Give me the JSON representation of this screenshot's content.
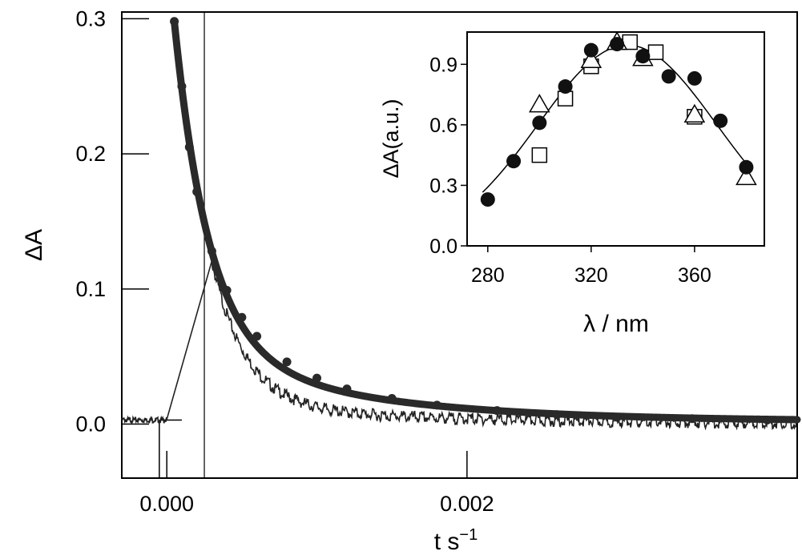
{
  "chart_data": [
    {
      "type": "line",
      "xlabel": "t s",
      "xlabel_sup": "−1",
      "ylabel": "ΔA",
      "xlim": [
        -0.0003,
        0.0042
      ],
      "ylim": [
        -0.04,
        0.305
      ],
      "x_ticks": [
        0.0,
        0.002
      ],
      "x_tick_labels": [
        "0.000",
        "0.002"
      ],
      "y_ticks": [
        0.0,
        0.1,
        0.2,
        0.3
      ],
      "y_tick_labels": [
        "0.0",
        "0.1",
        "0.2",
        "0.3"
      ],
      "grid": false,
      "series": [
        {
          "style": "thick-markers",
          "x": [
            5e-05,
            0.0001,
            0.00015,
            0.0002,
            0.0003,
            0.0004,
            0.0005,
            0.0006,
            0.0008,
            0.001,
            0.0012,
            0.0015,
            0.0018,
            0.0022,
            0.0026,
            0.003,
            0.0035,
            0.004
          ],
          "values": [
            0.298,
            0.25,
            0.205,
            0.172,
            0.128,
            0.099,
            0.079,
            0.065,
            0.046,
            0.034,
            0.026,
            0.019,
            0.014,
            0.01,
            0.007,
            0.005,
            0.004,
            0.003
          ]
        },
        {
          "style": "thin-noisy",
          "x": [
            -0.0003,
            -0.00015,
            0.0,
            0.00028,
            0.00032,
            0.0004,
            0.0005,
            0.0006,
            0.0008,
            0.001,
            0.0012,
            0.0015,
            0.0018,
            0.0022,
            0.0026,
            0.003,
            0.0035,
            0.004
          ],
          "values": [
            0.003,
            0.003,
            0.003,
            0.11,
            0.105,
            0.085,
            0.066,
            0.052,
            0.036,
            0.026,
            0.02,
            0.014,
            0.011,
            0.007,
            0.006,
            0.005,
            0.004,
            0.003
          ]
        }
      ]
    },
    {
      "type": "scatter",
      "xlabel": "λ / nm",
      "ylabel": "ΔA(a.u.)",
      "xlim": [
        272,
        387
      ],
      "ylim": [
        0.0,
        1.06
      ],
      "x_ticks": [
        280,
        320,
        360
      ],
      "x_tick_labels": [
        "280",
        "320",
        "360"
      ],
      "y_ticks": [
        0.0,
        0.3,
        0.6,
        0.9
      ],
      "y_tick_labels": [
        "0.0",
        "0.3",
        "0.6",
        "0.9"
      ],
      "grid": false,
      "series": [
        {
          "marker": "filled-circle",
          "x": [
            280,
            290,
            300,
            310,
            320,
            330,
            340,
            350,
            360,
            370,
            380
          ],
          "values": [
            0.23,
            0.42,
            0.61,
            0.79,
            0.97,
            1.0,
            0.94,
            0.84,
            0.83,
            0.62,
            0.39
          ]
        },
        {
          "marker": "open-square",
          "x": [
            300,
            310,
            320,
            335,
            345,
            360
          ],
          "values": [
            0.45,
            0.73,
            0.89,
            1.01,
            0.96,
            0.64
          ]
        },
        {
          "marker": "open-triangle",
          "x": [
            300,
            320,
            330,
            340,
            360,
            380
          ],
          "values": [
            0.7,
            0.92,
            1.01,
            0.93,
            0.65,
            0.34
          ]
        },
        {
          "marker": "fit-line",
          "x": [
            280,
            290,
            300,
            310,
            320,
            330,
            340,
            350,
            360,
            370,
            380
          ],
          "values": [
            0.24,
            0.43,
            0.62,
            0.79,
            0.92,
            0.99,
            0.98,
            0.9,
            0.77,
            0.58,
            0.36
          ]
        }
      ]
    }
  ]
}
